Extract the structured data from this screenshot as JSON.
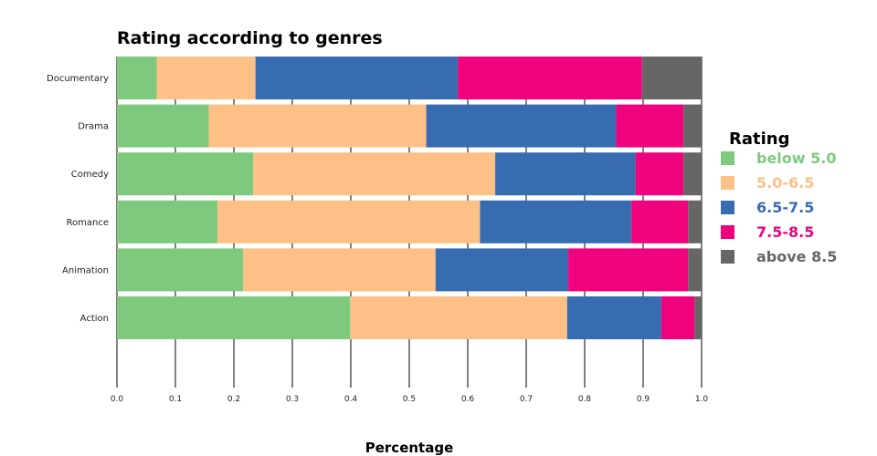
{
  "chart_data": {
    "type": "bar",
    "orientation": "horizontal",
    "stacked": true,
    "title": "Rating according to genres",
    "xlabel": "Percentage",
    "ylabel": "",
    "xlim": [
      0,
      1
    ],
    "x_ticks": [
      "0.0",
      "0.1",
      "0.2",
      "0.3",
      "0.4",
      "0.5",
      "0.6",
      "0.7",
      "0.8",
      "0.9",
      "1.0"
    ],
    "grid": "vertical",
    "legend_title": "Rating",
    "legend_position": "right",
    "categories": [
      "Documentary",
      "Drama",
      "Comedy",
      "Romance",
      "Animation",
      "Action"
    ],
    "series": [
      {
        "name": "below 5.0",
        "color": "#7fc97f",
        "values": [
          0.068,
          0.157,
          0.233,
          0.172,
          0.216,
          0.399
        ]
      },
      {
        "name": "5.0-6.5",
        "color": "#fdc086",
        "values": [
          0.169,
          0.372,
          0.414,
          0.449,
          0.329,
          0.371
        ]
      },
      {
        "name": "6.5-7.5",
        "color": "#386cb0",
        "values": [
          0.346,
          0.325,
          0.24,
          0.259,
          0.227,
          0.161
        ]
      },
      {
        "name": "7.5-8.5",
        "color": "#f0027f",
        "values": [
          0.315,
          0.115,
          0.082,
          0.097,
          0.205,
          0.057
        ]
      },
      {
        "name": "above 8.5",
        "color": "#666666",
        "values": [
          0.102,
          0.031,
          0.031,
          0.023,
          0.023,
          0.012
        ]
      }
    ]
  }
}
